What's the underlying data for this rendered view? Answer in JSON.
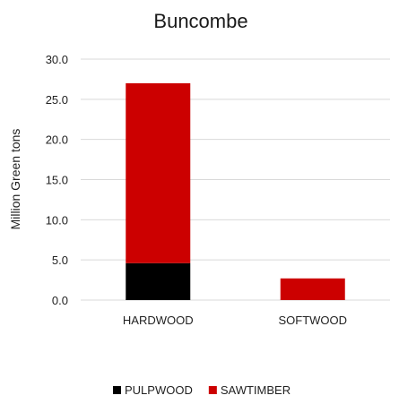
{
  "chart_data": {
    "type": "bar",
    "stacked": true,
    "title": "Buncombe",
    "xlabel": "",
    "ylabel": "Million Green tons",
    "categories": [
      "HARDWOOD",
      "SOFTWOOD"
    ],
    "series": [
      {
        "name": "PULPWOOD",
        "values": [
          4.6,
          0.0
        ],
        "color": "#000000"
      },
      {
        "name": "SAWTIMBER",
        "values": [
          22.4,
          2.7
        ],
        "color": "#cc0000"
      }
    ],
    "ylim": [
      0,
      30
    ],
    "yticks": [
      "0.0",
      "5.0",
      "10.0",
      "15.0",
      "20.0",
      "25.0",
      "30.0"
    ],
    "grid": true,
    "legend_position": "bottom"
  }
}
